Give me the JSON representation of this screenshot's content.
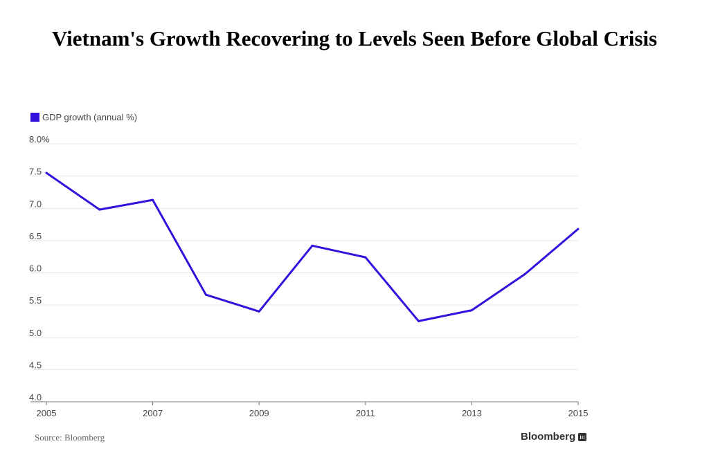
{
  "chart_data": {
    "type": "line",
    "title": "Vietnam's Growth Recovering to Levels Seen Before Global Crisis",
    "x": [
      2005,
      2006,
      2007,
      2008,
      2009,
      2010,
      2011,
      2012,
      2013,
      2014,
      2015
    ],
    "series": [
      {
        "name": "GDP growth (annual %)",
        "color": "#3311dd",
        "values": [
          7.55,
          6.98,
          7.13,
          5.66,
          5.4,
          6.42,
          6.24,
          5.25,
          5.42,
          5.98,
          6.68
        ]
      }
    ],
    "ylim": [
      4.0,
      8.0
    ],
    "yticks": [
      "4.0",
      "4.5",
      "5.0",
      "5.5",
      "6.0",
      "6.5",
      "7.0",
      "7.5",
      "8.0%"
    ],
    "xticks": [
      "2005",
      "2007",
      "2009",
      "2011",
      "2013",
      "2015"
    ],
    "grid": true,
    "legend": "top-left"
  },
  "footer": {
    "source": "Source: Bloomberg",
    "brand": "Bloomberg"
  }
}
